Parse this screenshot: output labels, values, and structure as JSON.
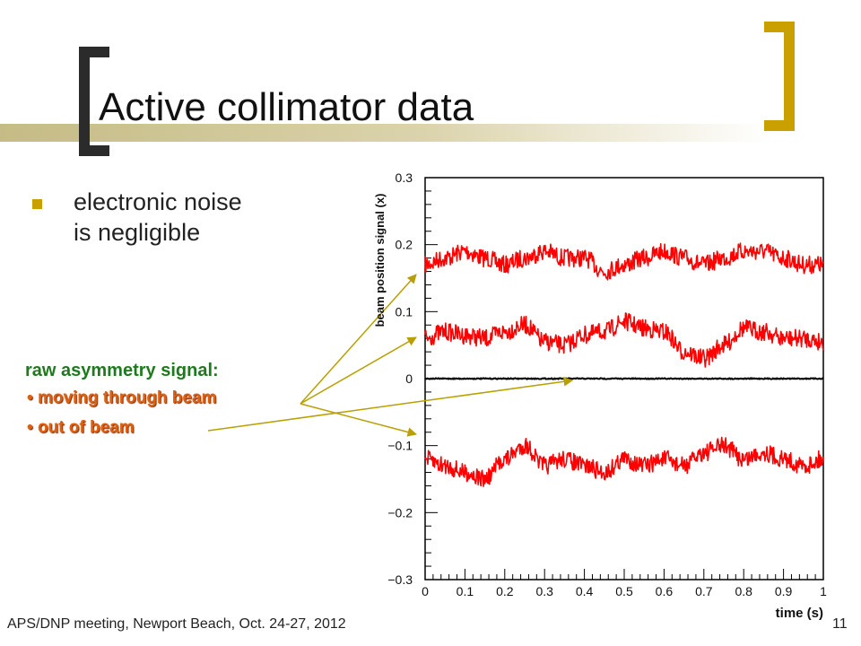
{
  "slide": {
    "title": "Active collimator data",
    "bullet": "electronic noise is negligible",
    "annotation": {
      "heading": "raw asymmetry signal:",
      "items": [
        "moving through beam",
        "out of beam"
      ]
    },
    "footer": "APS/DNP meeting, Newport Beach, Oct. 24-27, 2012",
    "page_number": "11",
    "colors": {
      "accent": "#c9a000",
      "heading_green": "#1e7a1e",
      "item_orange": "#e06010",
      "trace_red": "#ff0000"
    }
  },
  "chart_data": {
    "type": "line",
    "title": "",
    "xlabel": "time (s)",
    "ylabel": "beam position signal (x)",
    "xlim": [
      0,
      1
    ],
    "ylim": [
      -0.3,
      0.3
    ],
    "x_ticks": [
      "0",
      "0.1",
      "0.2",
      "0.3",
      "0.4",
      "0.5",
      "0.6",
      "0.7",
      "0.8",
      "0.9",
      "1"
    ],
    "y_ticks": [
      "0.3",
      "0.2",
      "0.1",
      "0",
      "−0.1",
      "−0.2",
      "−0.3"
    ],
    "grid": false,
    "series": [
      {
        "color": "#ff0000",
        "x": [
          0,
          0.05,
          0.1,
          0.15,
          0.2,
          0.25,
          0.3,
          0.35,
          0.4,
          0.45,
          0.5,
          0.55,
          0.6,
          0.65,
          0.7,
          0.75,
          0.8,
          0.85,
          0.9,
          0.95,
          1
        ],
        "y": [
          0.17,
          0.18,
          0.19,
          0.18,
          0.17,
          0.18,
          0.19,
          0.18,
          0.18,
          0.16,
          0.17,
          0.18,
          0.19,
          0.18,
          0.17,
          0.18,
          0.19,
          0.19,
          0.18,
          0.17,
          0.17
        ]
      },
      {
        "color": "#ff0000",
        "x": [
          0,
          0.05,
          0.1,
          0.15,
          0.2,
          0.25,
          0.3,
          0.35,
          0.4,
          0.45,
          0.5,
          0.55,
          0.6,
          0.65,
          0.7,
          0.75,
          0.8,
          0.85,
          0.9,
          0.95,
          1
        ],
        "y": [
          0.06,
          0.07,
          0.065,
          0.06,
          0.07,
          0.08,
          0.055,
          0.05,
          0.065,
          0.07,
          0.085,
          0.075,
          0.07,
          0.04,
          0.03,
          0.05,
          0.075,
          0.07,
          0.06,
          0.06,
          0.055
        ]
      },
      {
        "color": "#000000",
        "x": [
          0,
          0.5,
          1
        ],
        "y": [
          0.0,
          0.0,
          0.0
        ]
      },
      {
        "color": "#ff0000",
        "x": [
          0,
          0.05,
          0.1,
          0.15,
          0.2,
          0.25,
          0.3,
          0.35,
          0.4,
          0.45,
          0.5,
          0.55,
          0.6,
          0.65,
          0.7,
          0.75,
          0.8,
          0.85,
          0.9,
          0.95,
          1
        ],
        "y": [
          -0.12,
          -0.13,
          -0.14,
          -0.15,
          -0.12,
          -0.1,
          -0.13,
          -0.12,
          -0.13,
          -0.14,
          -0.12,
          -0.13,
          -0.12,
          -0.13,
          -0.11,
          -0.1,
          -0.12,
          -0.11,
          -0.12,
          -0.13,
          -0.12
        ]
      }
    ]
  }
}
